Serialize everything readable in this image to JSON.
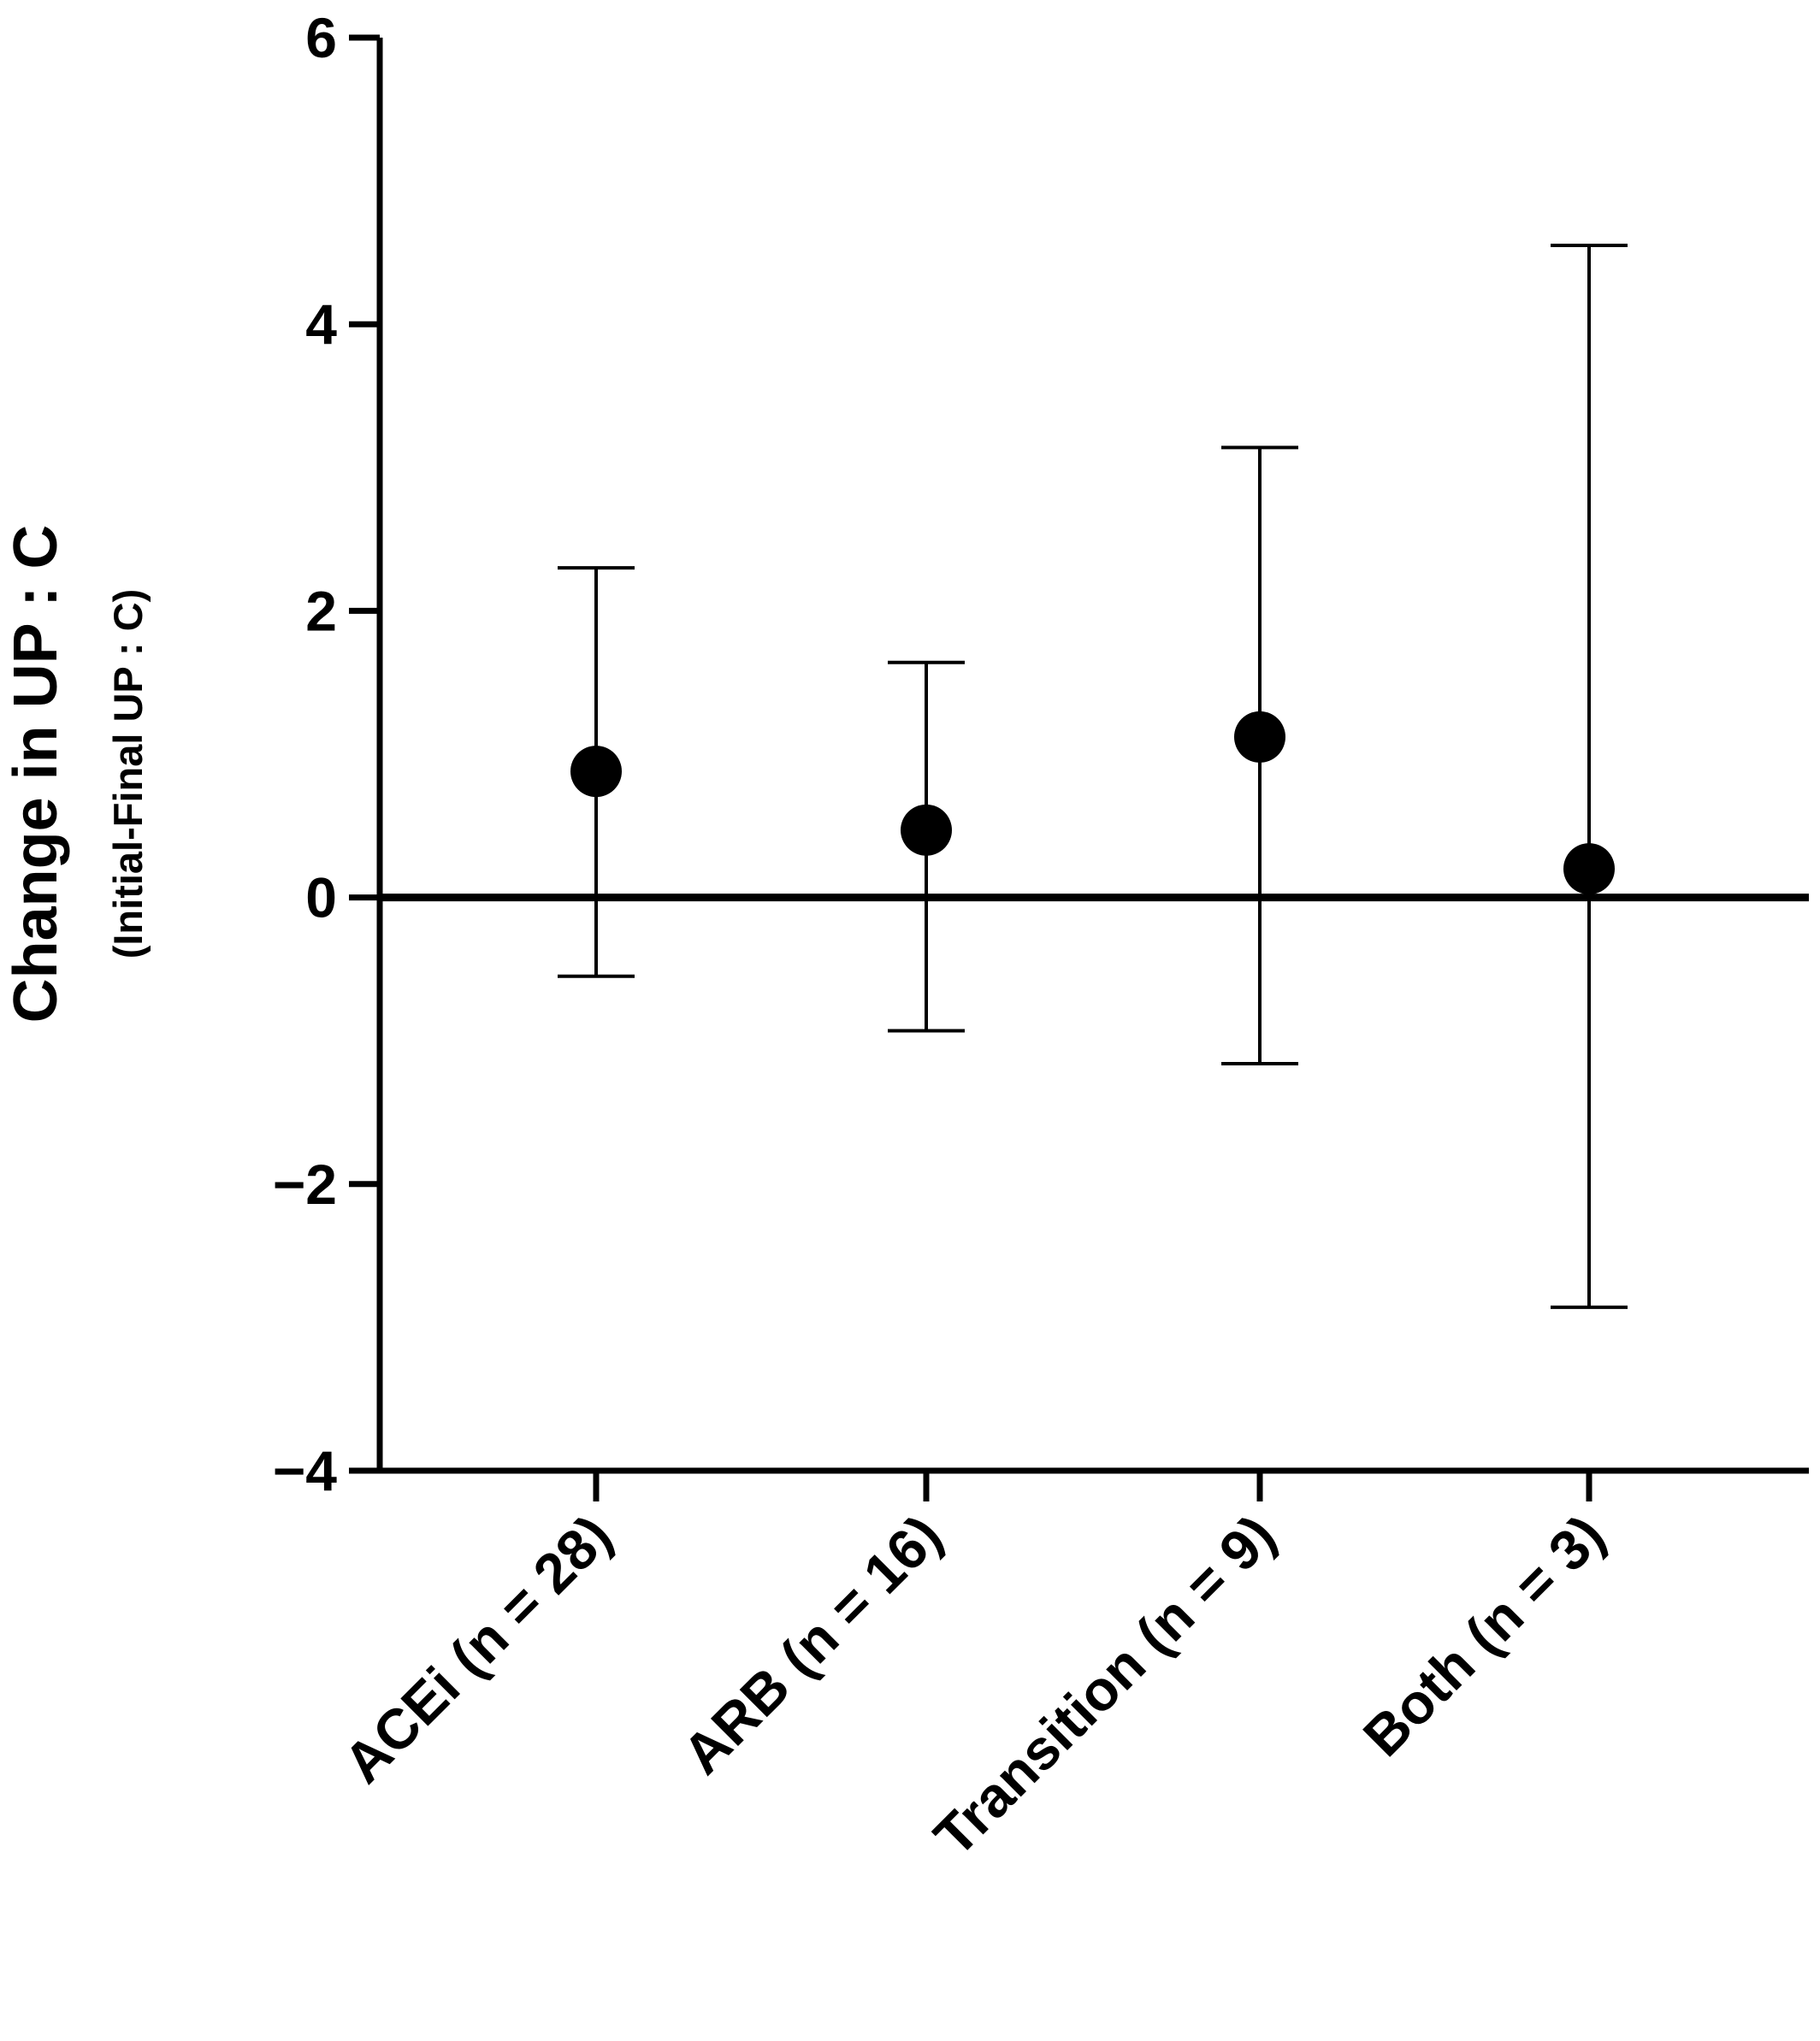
{
  "chart_data": {
    "type": "scatter",
    "title": "",
    "xlabel": "",
    "ylabel": "Change in UP : C",
    "ylabel_sub": "(Initial-Final UP : C)",
    "categories": [
      "ACEi (n = 28)",
      "ARB (n = 16)",
      "Transition (n = 9)",
      "Both (n = 3)"
    ],
    "values": [
      0.88,
      0.47,
      1.12,
      0.2
    ],
    "error_low": [
      -0.55,
      -0.93,
      -1.16,
      -2.86
    ],
    "error_high": [
      2.3,
      1.64,
      3.14,
      4.55
    ],
    "ylim": [
      -4,
      6
    ],
    "yticks": [
      6,
      4,
      2,
      0,
      -2,
      -4
    ],
    "ytick_labels": [
      "6",
      "4",
      "2",
      "0",
      "−2",
      "−4"
    ],
    "reference_line": 0,
    "grid": false,
    "legend": "none",
    "marker_color": "#000000"
  }
}
